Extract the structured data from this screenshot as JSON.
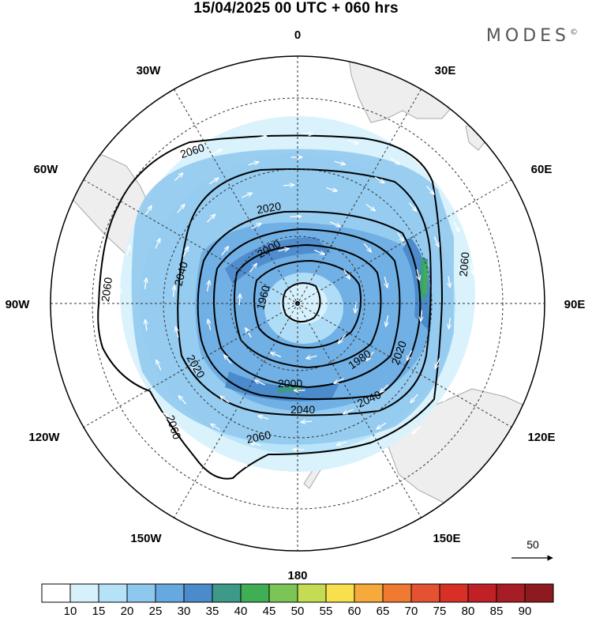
{
  "title": "15/04/2025  00 UTC  + 060 hrs",
  "brand": "MODES",
  "brand_mark": "©",
  "projection": "polar-stereographic-south",
  "longitude_labels": [
    "0",
    "30E",
    "60E",
    "90E",
    "120E",
    "150E",
    "180",
    "150W",
    "120W",
    "90W",
    "60W",
    "30W"
  ],
  "contour_labels": [
    "2060",
    "2060",
    "2060",
    "2060",
    "2060",
    "2040",
    "2040",
    "2040",
    "2020",
    "2020",
    "2020",
    "2000",
    "2000",
    "1980",
    "1960"
  ],
  "vector_reference": {
    "label": "50"
  },
  "colorbar": {
    "ticks": [
      "10",
      "15",
      "20",
      "25",
      "30",
      "35",
      "40",
      "45",
      "50",
      "55",
      "60",
      "65",
      "70",
      "75",
      "80",
      "85",
      "90"
    ],
    "colors": [
      "#ffffff",
      "#d7f1fc",
      "#b6e2f8",
      "#8ec8ef",
      "#66a9e1",
      "#4b8acb",
      "#3d9a89",
      "#3fae55",
      "#7bc557",
      "#c4dc52",
      "#f7df4d",
      "#f6aa3c",
      "#f07a32",
      "#e55232",
      "#d83027",
      "#bf2127",
      "#a71d26",
      "#8d1a1e"
    ]
  },
  "colors": {
    "land": "#eeeeee",
    "coast": "#a8a8a8",
    "contour": "#000000",
    "wind_vector": "#ffffff"
  }
}
